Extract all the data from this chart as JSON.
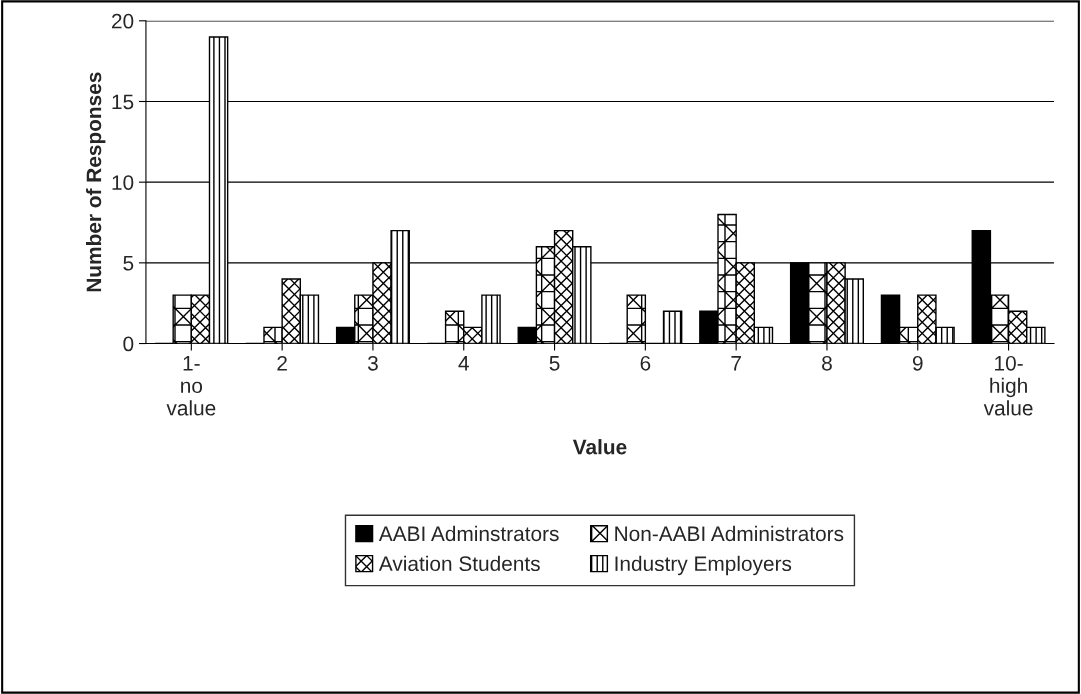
{
  "chart_data": {
    "type": "bar",
    "xlabel": "Value",
    "ylabel": "Number of Responses",
    "categories": [
      "1-no value",
      "2",
      "3",
      "4",
      "5",
      "6",
      "7",
      "8",
      "9",
      "10-high value"
    ],
    "series": [
      {
        "name": "AABI Adminstrators",
        "color": "#000000",
        "values": [
          0,
          0,
          1,
          0,
          1,
          0,
          2,
          5,
          3,
          7
        ]
      },
      {
        "name": "Non-AABI Administrators",
        "color": "#000000",
        "values": [
          3,
          1,
          3,
          2,
          6,
          3,
          8,
          5,
          1,
          3
        ]
      },
      {
        "name": "Aviation Students",
        "color": "#000000",
        "values": [
          3,
          4,
          5,
          1,
          7,
          0,
          5,
          5,
          3,
          2
        ]
      },
      {
        "name": "Industry Employers",
        "color": "#000000",
        "values": [
          19,
          3,
          7,
          3,
          6,
          2,
          1,
          4,
          1,
          1
        ]
      }
    ],
    "ylim": [
      0,
      20
    ],
    "yticks": [
      0,
      5,
      10,
      15,
      20
    ],
    "grid": "y",
    "legend": "bottom"
  }
}
